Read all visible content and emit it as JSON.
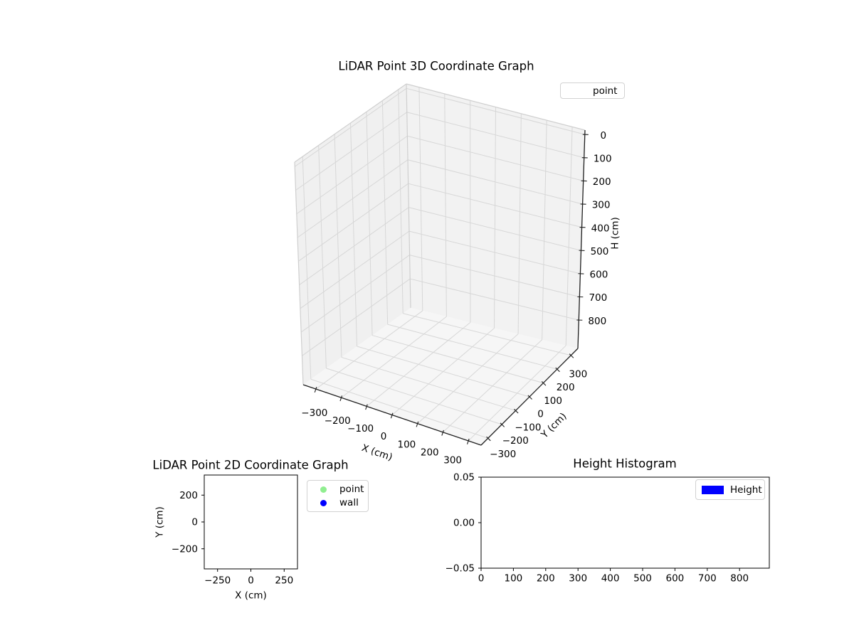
{
  "figure": {
    "background": "#ffffff"
  },
  "plot3d": {
    "title": "LiDAR Point 3D Coordinate Graph",
    "legend": [
      {
        "label": "point"
      }
    ],
    "x": {
      "label": "X (cm)",
      "tick_labels": [
        "−300",
        "−200",
        "−100",
        "0",
        "100",
        "200",
        "300"
      ]
    },
    "y": {
      "label": "Y (cm)",
      "tick_labels": [
        "−300",
        "−200",
        "−100",
        "0",
        "100",
        "200",
        "300"
      ]
    },
    "z": {
      "label": "H (cm)",
      "tick_labels": [
        "0",
        "100",
        "200",
        "300",
        "400",
        "500",
        "600",
        "700",
        "800"
      ]
    }
  },
  "plot2d": {
    "title": "LiDAR Point 2D Coordinate Graph",
    "x": {
      "label": "X (cm)",
      "tick_labels": [
        "−250",
        "0",
        "250"
      ]
    },
    "y": {
      "label": "Y (cm)",
      "tick_labels": [
        "200",
        "0",
        "−200"
      ]
    },
    "legend": [
      {
        "label": "point",
        "color": "#90EE90"
      },
      {
        "label": "wall",
        "color": "#0000FF"
      }
    ]
  },
  "histogram": {
    "title": "Height Histogram",
    "x": {
      "tick_labels": [
        "0",
        "100",
        "200",
        "300",
        "400",
        "500",
        "600",
        "700",
        "800"
      ]
    },
    "y": {
      "tick_labels": [
        "0.05",
        "0.00",
        "−0.05"
      ]
    },
    "legend": [
      {
        "label": "Height",
        "color": "#0000FF"
      }
    ]
  },
  "colors": {
    "pane_left": "#f0f0f0",
    "pane_right": "#f2f2f2",
    "pane_floor": "#f6f6f6",
    "grid": "#d7d7d7",
    "pane_edge": "#cfcfcf",
    "spine3d": "#1f1f1f",
    "axis": "#000000",
    "text": "#000000",
    "point_marker": "#90EE90",
    "wall_marker": "#0000FF",
    "hist_bar": "#0000FF"
  },
  "chart_data": [
    {
      "id": "plot3d",
      "type": "scatter",
      "projection": "3d",
      "title": "LiDAR Point 3D Coordinate Graph",
      "xlabel": "X (cm)",
      "ylabel": "Y (cm)",
      "zlabel": "H (cm)",
      "xticks": [
        -300,
        -200,
        -100,
        0,
        100,
        200,
        300
      ],
      "yticks": [
        -300,
        -200,
        -100,
        0,
        100,
        200,
        300
      ],
      "zticks": [
        0,
        100,
        200,
        300,
        400,
        500,
        600,
        700,
        800
      ],
      "xlim": [
        -350,
        350
      ],
      "ylim": [
        -350,
        350
      ],
      "zlim": [
        0,
        850
      ],
      "zaxis_inverted": true,
      "grid": true,
      "legend_position": "upper right",
      "legend_entries": [
        "point"
      ],
      "series": [
        {
          "name": "point",
          "points": []
        }
      ]
    },
    {
      "id": "plot2d",
      "type": "scatter",
      "title": "LiDAR Point 2D Coordinate Graph",
      "xlabel": "X (cm)",
      "ylabel": "Y (cm)",
      "xticks": [
        -250,
        0,
        250
      ],
      "yticks": [
        200,
        0,
        -200
      ],
      "xlim": [
        -350,
        350
      ],
      "ylim": [
        -350,
        350
      ],
      "grid": false,
      "legend_position": "outside upper right",
      "legend_entries": [
        "point",
        "wall"
      ],
      "series": [
        {
          "name": "point",
          "color": "#90EE90",
          "points": []
        },
        {
          "name": "wall",
          "color": "#0000FF",
          "points": []
        }
      ]
    },
    {
      "id": "histogram",
      "type": "histogram",
      "title": "Height Histogram",
      "xlabel": "",
      "ylabel": "",
      "xticks": [
        0,
        100,
        200,
        300,
        400,
        500,
        600,
        700,
        800
      ],
      "yticks": [
        0.05,
        0.0,
        -0.05
      ],
      "xlim": [
        0,
        890
      ],
      "ylim": [
        -0.05,
        0.05
      ],
      "grid": false,
      "legend_position": "upper right",
      "legend_entries": [
        "Height"
      ],
      "series": [
        {
          "name": "Height",
          "color": "#0000FF",
          "values": []
        }
      ]
    }
  ]
}
